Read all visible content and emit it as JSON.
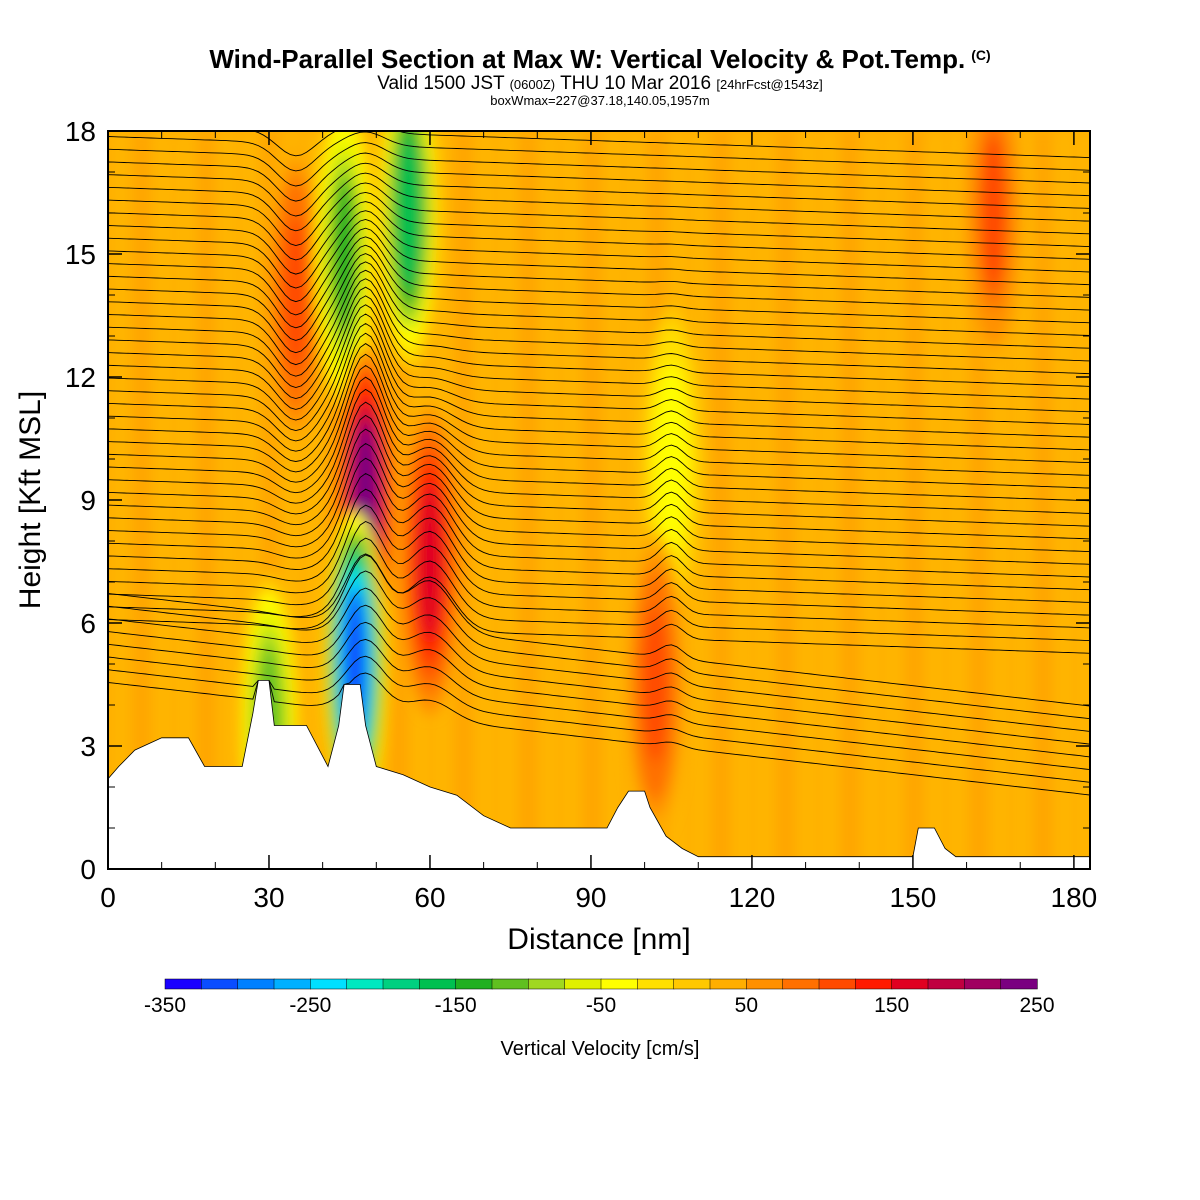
{
  "header": {
    "title": "Wind-Parallel Section at Max W: Vertical Velocity & Pot.Temp.",
    "copyright": "(C)",
    "subtitle_a": "Valid 1500 JST",
    "subtitle_b": "(0600Z)",
    "subtitle_c": "THU 10 Mar 2016",
    "subtitle_d": "[24hrFcst@1543z]",
    "subtitle2": "boxWmax=227@37.18,140.05,1957m"
  },
  "chart_data": {
    "type": "heatmap",
    "title": "Wind-Parallel Section at Max W: Vertical Velocity & Pot.Temp.",
    "xlabel": "Distance [nm]",
    "ylabel": "Height [Kft MSL]",
    "xlim": [
      0,
      183
    ],
    "ylim": [
      0,
      18
    ],
    "x_ticks": [
      0,
      30,
      60,
      90,
      120,
      150,
      180
    ],
    "y_ticks": [
      0,
      3,
      6,
      9,
      12,
      15,
      18
    ],
    "colorbar": {
      "label": "Vertical Velocity [cm/s]",
      "range": [
        -350,
        250
      ],
      "step": 25,
      "tick_labels": [
        -350,
        -250,
        -150,
        -50,
        50,
        150,
        250
      ],
      "colors": [
        "#1a00ff",
        "#0a4dff",
        "#0080ff",
        "#00b0ff",
        "#00e0ff",
        "#00e8c0",
        "#00d080",
        "#00c050",
        "#20b020",
        "#60c020",
        "#a0d820",
        "#e0f000",
        "#ffff00",
        "#ffe000",
        "#ffc800",
        "#ffae00",
        "#ff9000",
        "#ff7000",
        "#ff4a00",
        "#ff1a00",
        "#e00020",
        "#c00040",
        "#a00060",
        "#7a0080"
      ]
    },
    "background_w_cms": 30,
    "updraft_regions": [
      {
        "x": 35,
        "y": 14,
        "w_cms": 110
      },
      {
        "x": 48,
        "y": 9,
        "w_cms": 227
      },
      {
        "x": 60,
        "y": 7.5,
        "w_cms": 150
      },
      {
        "x": 165,
        "y": 16,
        "w_cms": 100
      },
      {
        "x": 102,
        "y": 4.5,
        "w_cms": 110
      }
    ],
    "downdraft_regions": [
      {
        "x": 44,
        "y": 15,
        "w_cms": -130
      },
      {
        "x": 56,
        "y": 16,
        "w_cms": -170
      },
      {
        "x": 46,
        "y": 5,
        "w_cms": -320
      },
      {
        "x": 30,
        "y": 3.5,
        "w_cms": -110
      },
      {
        "x": 105,
        "y": 10,
        "w_cms": -50
      }
    ],
    "terrain_kft": [
      [
        0,
        2.2
      ],
      [
        2,
        2.5
      ],
      [
        5,
        2.9
      ],
      [
        10,
        3.2
      ],
      [
        15,
        3.2
      ],
      [
        18,
        2.5
      ],
      [
        25,
        2.5
      ],
      [
        27,
        3.8
      ],
      [
        28,
        4.6
      ],
      [
        30,
        4.6
      ],
      [
        31,
        3.5
      ],
      [
        35,
        3.5
      ],
      [
        37,
        3.5
      ],
      [
        41,
        2.5
      ],
      [
        43,
        3.5
      ],
      [
        44,
        4.5
      ],
      [
        47,
        4.5
      ],
      [
        48,
        3.5
      ],
      [
        50,
        2.5
      ],
      [
        55,
        2.3
      ],
      [
        60,
        2.0
      ],
      [
        65,
        1.8
      ],
      [
        70,
        1.3
      ],
      [
        75,
        1.0
      ],
      [
        80,
        1.0
      ],
      [
        85,
        1.0
      ],
      [
        90,
        1.0
      ],
      [
        93,
        1.0
      ],
      [
        95,
        1.5
      ],
      [
        97,
        1.9
      ],
      [
        100,
        1.9
      ],
      [
        101,
        1.5
      ],
      [
        104,
        0.8
      ],
      [
        107,
        0.5
      ],
      [
        110,
        0.3
      ],
      [
        120,
        0.3
      ],
      [
        150,
        0.3
      ],
      [
        151,
        1.0
      ],
      [
        154,
        1.0
      ],
      [
        156,
        0.5
      ],
      [
        158,
        0.3
      ],
      [
        183,
        0.3
      ]
    ]
  }
}
